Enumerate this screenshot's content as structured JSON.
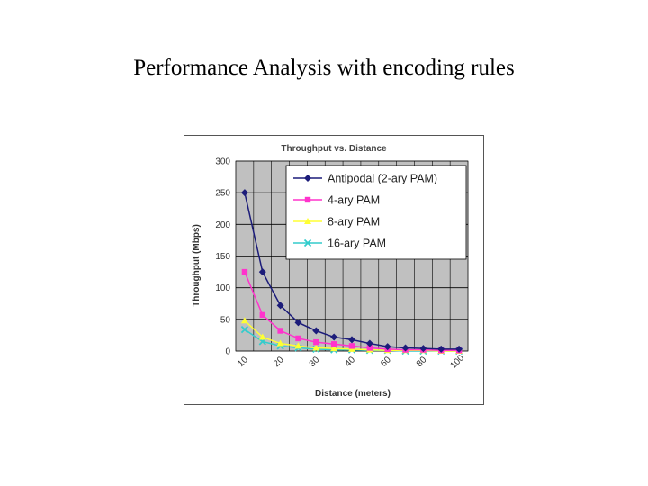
{
  "slide": {
    "title": "Performance Analysis with encoding rules"
  },
  "chart_data": {
    "type": "line",
    "title": "Throughput vs. Distance",
    "xlabel": "Distance (meters)",
    "ylabel": "Throughput (Mbps)",
    "categories": [
      "10",
      "15",
      "20",
      "25",
      "30",
      "35",
      "40",
      "50",
      "60",
      "70",
      "80",
      "90",
      "100"
    ],
    "tick_labels": [
      "10",
      "20",
      "30",
      "40",
      "60",
      "80",
      "100"
    ],
    "tick_label_indices": [
      0,
      2,
      4,
      6,
      8,
      10,
      12
    ],
    "ylim": [
      0,
      300
    ],
    "yticks": [
      0,
      50,
      100,
      150,
      200,
      250,
      300
    ],
    "grid": true,
    "legend_position": "top-right",
    "series": [
      {
        "name": "Antipodal (2-ary PAM)",
        "color": "#1c1c7a",
        "marker": "diamond",
        "values": [
          250,
          125,
          72,
          45,
          32,
          22,
          18,
          12,
          7,
          5,
          4,
          3,
          3
        ]
      },
      {
        "name": "4-ary PAM",
        "color": "#ff33cc",
        "marker": "square",
        "values": [
          125,
          57,
          32,
          20,
          14,
          11,
          8,
          5,
          3,
          2,
          2,
          1,
          1
        ]
      },
      {
        "name": "8-ary PAM",
        "color": "#ffff33",
        "marker": "triangle",
        "values": [
          48,
          22,
          12,
          8,
          5,
          4,
          3,
          2,
          1,
          1,
          1,
          0,
          0
        ]
      },
      {
        "name": "16-ary PAM",
        "color": "#33cccc",
        "marker": "x",
        "values": [
          34,
          15,
          8,
          5,
          3,
          2,
          2,
          1,
          1,
          0,
          0,
          0,
          0
        ]
      }
    ]
  }
}
